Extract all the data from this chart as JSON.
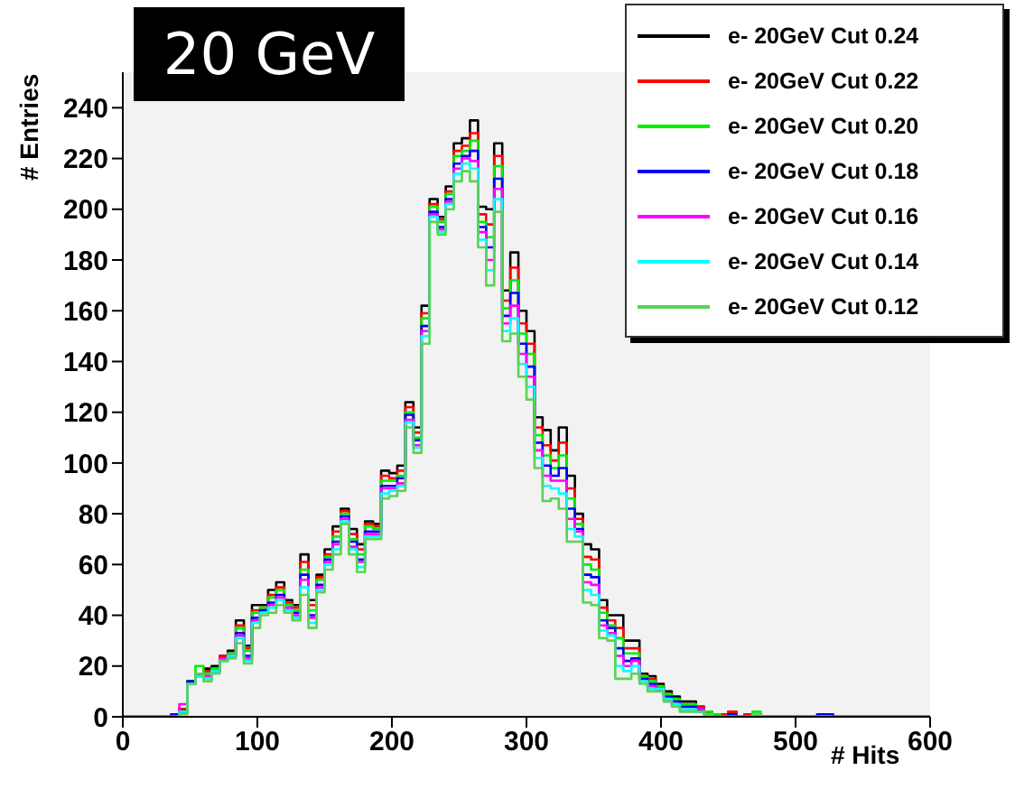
{
  "chart_data": {
    "type": "histogram",
    "title": "20 GeV",
    "xlabel": "# Hits",
    "ylabel": "# Entries",
    "bins": [
      0,
      6,
      12,
      18,
      24,
      30,
      36,
      42,
      48,
      54,
      60,
      66,
      72,
      78,
      84,
      90,
      96,
      102,
      108,
      114,
      120,
      126,
      132,
      138,
      144,
      150,
      156,
      162,
      168,
      174,
      180,
      186,
      192,
      198,
      204,
      210,
      216,
      222,
      228,
      234,
      240,
      246,
      252,
      258,
      264,
      270,
      276,
      282,
      288,
      294,
      300,
      306,
      312,
      318,
      324,
      330,
      336,
      342,
      348,
      354,
      360,
      366,
      372,
      378,
      384,
      390,
      396,
      402,
      408,
      414,
      420,
      426,
      432,
      438,
      444,
      450,
      456,
      462,
      468,
      474,
      480,
      486,
      492,
      498,
      504,
      510,
      516,
      522,
      528,
      534,
      540,
      546,
      552,
      558,
      564,
      570,
      576,
      582,
      588,
      594,
      600
    ],
    "xlim": [
      0,
      600
    ],
    "xticks": [
      0,
      100,
      200,
      300,
      400,
      500,
      600
    ],
    "ylim": [
      0,
      254
    ],
    "yticks": [
      0,
      20,
      40,
      60,
      80,
      100,
      120,
      140,
      160,
      180,
      200,
      220,
      240
    ],
    "legend": "top right",
    "series": [
      {
        "name": "e- 20GeV Cut 0.24",
        "color": "#000000",
        "values": [
          0,
          0,
          0,
          0,
          0,
          0,
          1,
          3,
          14,
          17,
          19,
          20,
          24,
          26,
          38,
          28,
          44,
          44,
          50,
          53,
          46,
          44,
          64,
          46,
          56,
          66,
          75,
          82,
          74,
          68,
          77,
          76,
          97,
          96,
          99,
          124,
          114,
          162,
          204,
          197,
          209,
          226,
          228,
          235,
          201,
          200,
          226,
          168,
          183,
          160,
          152,
          118,
          113,
          105,
          114,
          95,
          80,
          68,
          66,
          46,
          40,
          40,
          30,
          30,
          17,
          16,
          13,
          10,
          8,
          6,
          6,
          4,
          2,
          1,
          1,
          2,
          0,
          1,
          1,
          0,
          0,
          0,
          0,
          0,
          0,
          0,
          0,
          0,
          0,
          0,
          0,
          0,
          0,
          0,
          0,
          0,
          0,
          0,
          0,
          0
        ]
      },
      {
        "name": "e- 20GeV Cut 0.22",
        "color": "#ff0000",
        "values": [
          0,
          0,
          0,
          0,
          0,
          0,
          1,
          3,
          14,
          17,
          18,
          19,
          24,
          25,
          36,
          27,
          42,
          43,
          48,
          51,
          45,
          43,
          61,
          44,
          55,
          64,
          73,
          81,
          72,
          66,
          76,
          75,
          95,
          94,
          97,
          122,
          112,
          159,
          202,
          196,
          207,
          223,
          225,
          230,
          198,
          194,
          221,
          164,
          177,
          155,
          147,
          114,
          107,
          101,
          108,
          90,
          78,
          63,
          62,
          43,
          38,
          35,
          27,
          27,
          16,
          15,
          12,
          9,
          7,
          5,
          5,
          4,
          2,
          1,
          1,
          2,
          0,
          1,
          1,
          0,
          0,
          0,
          0,
          0,
          0,
          0,
          0,
          0,
          0,
          0,
          0,
          0,
          0,
          0,
          0,
          0,
          0,
          0,
          0,
          0
        ]
      },
      {
        "name": "e- 20GeV Cut 0.20",
        "color": "#00ee00",
        "values": [
          0,
          0,
          0,
          0,
          0,
          0,
          1,
          2,
          14,
          20,
          17,
          19,
          23,
          25,
          35,
          26,
          41,
          43,
          47,
          50,
          44,
          42,
          58,
          42,
          54,
          63,
          71,
          80,
          70,
          64,
          75,
          74,
          93,
          93,
          95,
          120,
          110,
          157,
          201,
          195,
          206,
          221,
          223,
          227,
          195,
          189,
          217,
          161,
          172,
          151,
          143,
          111,
          103,
          98,
          103,
          86,
          76,
          60,
          58,
          41,
          36,
          31,
          25,
          25,
          16,
          14,
          12,
          9,
          7,
          5,
          5,
          3,
          2,
          1,
          0,
          1,
          0,
          0,
          2,
          0,
          0,
          0,
          0,
          0,
          0,
          0,
          0,
          0,
          0,
          0,
          0,
          0,
          0,
          0,
          0,
          0,
          0,
          0,
          0,
          0
        ]
      },
      {
        "name": "e- 20GeV Cut 0.18",
        "color": "#0000ff",
        "values": [
          0,
          0,
          0,
          0,
          0,
          0,
          1,
          2,
          14,
          16,
          16,
          18,
          23,
          24,
          33,
          24,
          39,
          42,
          45,
          48,
          43,
          41,
          56,
          40,
          52,
          62,
          69,
          79,
          69,
          62,
          73,
          73,
          91,
          91,
          94,
          119,
          109,
          154,
          199,
          193,
          204,
          218,
          221,
          223,
          193,
          185,
          212,
          158,
          167,
          147,
          138,
          108,
          99,
          95,
          98,
          82,
          74,
          56,
          55,
          38,
          35,
          27,
          22,
          23,
          15,
          13,
          11,
          8,
          6,
          4,
          4,
          3,
          1,
          0,
          0,
          1,
          0,
          0,
          1,
          0,
          0,
          0,
          0,
          0,
          0,
          0,
          1,
          1,
          0,
          0,
          0,
          0,
          0,
          0,
          0,
          0,
          0,
          0,
          0,
          0
        ]
      },
      {
        "name": "e- 20GeV Cut 0.16",
        "color": "#ff00ff",
        "values": [
          0,
          0,
          0,
          0,
          0,
          0,
          0,
          5,
          13,
          16,
          16,
          18,
          23,
          24,
          32,
          23,
          38,
          41,
          44,
          47,
          43,
          40,
          54,
          39,
          51,
          61,
          68,
          78,
          67,
          61,
          72,
          72,
          90,
          90,
          92,
          117,
          107,
          152,
          198,
          192,
          203,
          216,
          220,
          219,
          191,
          180,
          208,
          155,
          162,
          143,
          134,
          105,
          95,
          93,
          93,
          78,
          73,
          53,
          52,
          36,
          33,
          24,
          20,
          22,
          14,
          12,
          11,
          7,
          5,
          3,
          3,
          3,
          1,
          0,
          0,
          0,
          0,
          0,
          1,
          0,
          0,
          0,
          0,
          0,
          0,
          0,
          0,
          0,
          0,
          0,
          0,
          0,
          0,
          0,
          0,
          0,
          0,
          0,
          0,
          0
        ]
      },
      {
        "name": "e- 20GeV Cut 0.14",
        "color": "#00ffff",
        "values": [
          0,
          0,
          0,
          0,
          0,
          0,
          0,
          2,
          13,
          16,
          15,
          18,
          22,
          24,
          31,
          22,
          37,
          41,
          43,
          46,
          42,
          39,
          51,
          37,
          50,
          60,
          66,
          77,
          66,
          59,
          71,
          71,
          88,
          89,
          91,
          116,
          106,
          150,
          197,
          191,
          202,
          214,
          218,
          216,
          188,
          176,
          204,
          152,
          157,
          139,
          130,
          102,
          91,
          90,
          88,
          74,
          71,
          50,
          48,
          34,
          32,
          20,
          18,
          20,
          14,
          11,
          11,
          7,
          5,
          3,
          3,
          2,
          1,
          0,
          0,
          0,
          0,
          0,
          1,
          0,
          0,
          0,
          0,
          0,
          0,
          0,
          0,
          0,
          0,
          0,
          0,
          0,
          0,
          0,
          0,
          0,
          0,
          0,
          0,
          0
        ]
      },
      {
        "name": "e- 20GeV Cut 0.12",
        "color": "#59d354",
        "values": [
          0,
          0,
          0,
          0,
          0,
          0,
          0,
          1,
          13,
          17,
          14,
          17,
          22,
          23,
          29,
          21,
          35,
          40,
          41,
          44,
          41,
          38,
          48,
          35,
          49,
          58,
          64,
          76,
          64,
          57,
          70,
          70,
          86,
          87,
          89,
          114,
          104,
          147,
          195,
          190,
          200,
          211,
          215,
          211,
          185,
          170,
          199,
          148,
          151,
          134,
          125,
          98,
          85,
          86,
          82,
          69,
          69,
          45,
          44,
          31,
          30,
          15,
          15,
          17,
          13,
          10,
          10,
          6,
          4,
          2,
          2,
          2,
          1,
          0,
          0,
          0,
          0,
          0,
          1,
          0,
          0,
          0,
          0,
          0,
          0,
          0,
          0,
          0,
          0,
          0,
          0,
          0,
          0,
          0,
          0,
          0,
          0,
          0,
          0,
          0
        ]
      }
    ]
  }
}
